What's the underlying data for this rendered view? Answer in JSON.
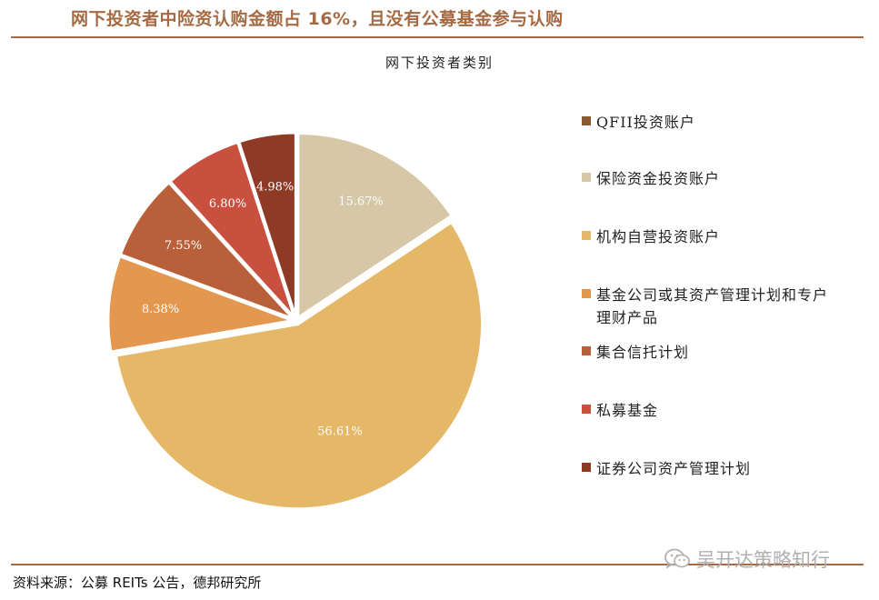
{
  "header": {
    "title": "网下投资者中险资认购金额占 16%，且没有公募基金参与认购"
  },
  "footer": {
    "source": "资料来源：公募 REITs 公告，德邦研究所"
  },
  "watermark": {
    "text": "吴开达策略知行",
    "icon": "wechat-icon"
  },
  "chart_data": {
    "type": "pie",
    "title": "网下投资者类别",
    "legend_position": "right",
    "start_angle_deg": 0,
    "direction": "clockwise",
    "slices": [
      {
        "label": "保险资金投资账户",
        "value": 15.67,
        "display": "15.67%",
        "color": "#D6C7A6"
      },
      {
        "label": "机构自营投资账户",
        "value": 56.61,
        "display": "56.61%",
        "color": "#E5B867"
      },
      {
        "label": "基金公司或其资产管理计划和专户理财产品",
        "value": 8.38,
        "display": "8.38%",
        "color": "#E4974E"
      },
      {
        "label": "集合信托计划",
        "value": 7.55,
        "display": "7.55%",
        "color": "#B9603A"
      },
      {
        "label": "私募基金",
        "value": 6.8,
        "display": "6.80%",
        "color": "#C94F3F"
      },
      {
        "label": "证券公司资产管理计划",
        "value": 4.98,
        "display": "4.98%",
        "color": "#8E3A25"
      }
    ],
    "legend": [
      {
        "label": "QFII投资账户",
        "color": "#8A5A32"
      },
      {
        "label": "保险资金投资账户",
        "color": "#D6C7A6"
      },
      {
        "label": "机构自营投资账户",
        "color": "#E5B867"
      },
      {
        "label": "基金公司或其资产管理计划和专户理财产品",
        "color": "#E4974E"
      },
      {
        "label": "集合信托计划",
        "color": "#B9603A"
      },
      {
        "label": "私募基金",
        "color": "#C94F3F"
      },
      {
        "label": "证券公司资产管理计划",
        "color": "#8E3A25"
      }
    ]
  }
}
